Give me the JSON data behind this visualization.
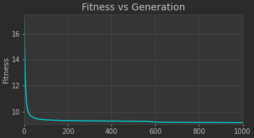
{
  "title": "Fitness vs Generation",
  "xlabel": "",
  "ylabel": "Fitness",
  "xlim": [
    0,
    1000
  ],
  "ylim": [
    9.0,
    17.5
  ],
  "yticks": [
    10,
    12,
    14,
    16
  ],
  "xticks": [
    0,
    200,
    400,
    600,
    800,
    1000
  ],
  "line_color": "#00e0e0",
  "line_width": 1.0,
  "bg_color": "#2b2b2b",
  "axes_bg_color": "#353535",
  "grid_color": "#4a4a4a",
  "text_color": "#c0c0c0",
  "title_fontsize": 10,
  "label_fontsize": 8,
  "tick_fontsize": 7,
  "curve_points": [
    [
      0,
      17.1
    ],
    [
      2,
      15.0
    ],
    [
      5,
      12.5
    ],
    [
      10,
      10.8
    ],
    [
      15,
      10.2
    ],
    [
      20,
      9.9
    ],
    [
      25,
      9.75
    ],
    [
      30,
      9.65
    ],
    [
      40,
      9.55
    ],
    [
      50,
      9.48
    ],
    [
      60,
      9.42
    ],
    [
      80,
      9.38
    ],
    [
      100,
      9.35
    ],
    [
      120,
      9.33
    ],
    [
      150,
      9.31
    ],
    [
      200,
      9.29
    ],
    [
      250,
      9.28
    ],
    [
      300,
      9.27
    ],
    [
      350,
      9.265
    ],
    [
      400,
      9.26
    ],
    [
      450,
      9.255
    ],
    [
      500,
      9.25
    ],
    [
      550,
      9.245
    ],
    [
      600,
      9.18
    ],
    [
      620,
      9.17
    ],
    [
      650,
      9.165
    ],
    [
      700,
      9.16
    ],
    [
      750,
      9.155
    ],
    [
      800,
      9.15
    ],
    [
      850,
      9.148
    ],
    [
      900,
      9.146
    ],
    [
      950,
      9.144
    ],
    [
      1000,
      9.143
    ]
  ]
}
